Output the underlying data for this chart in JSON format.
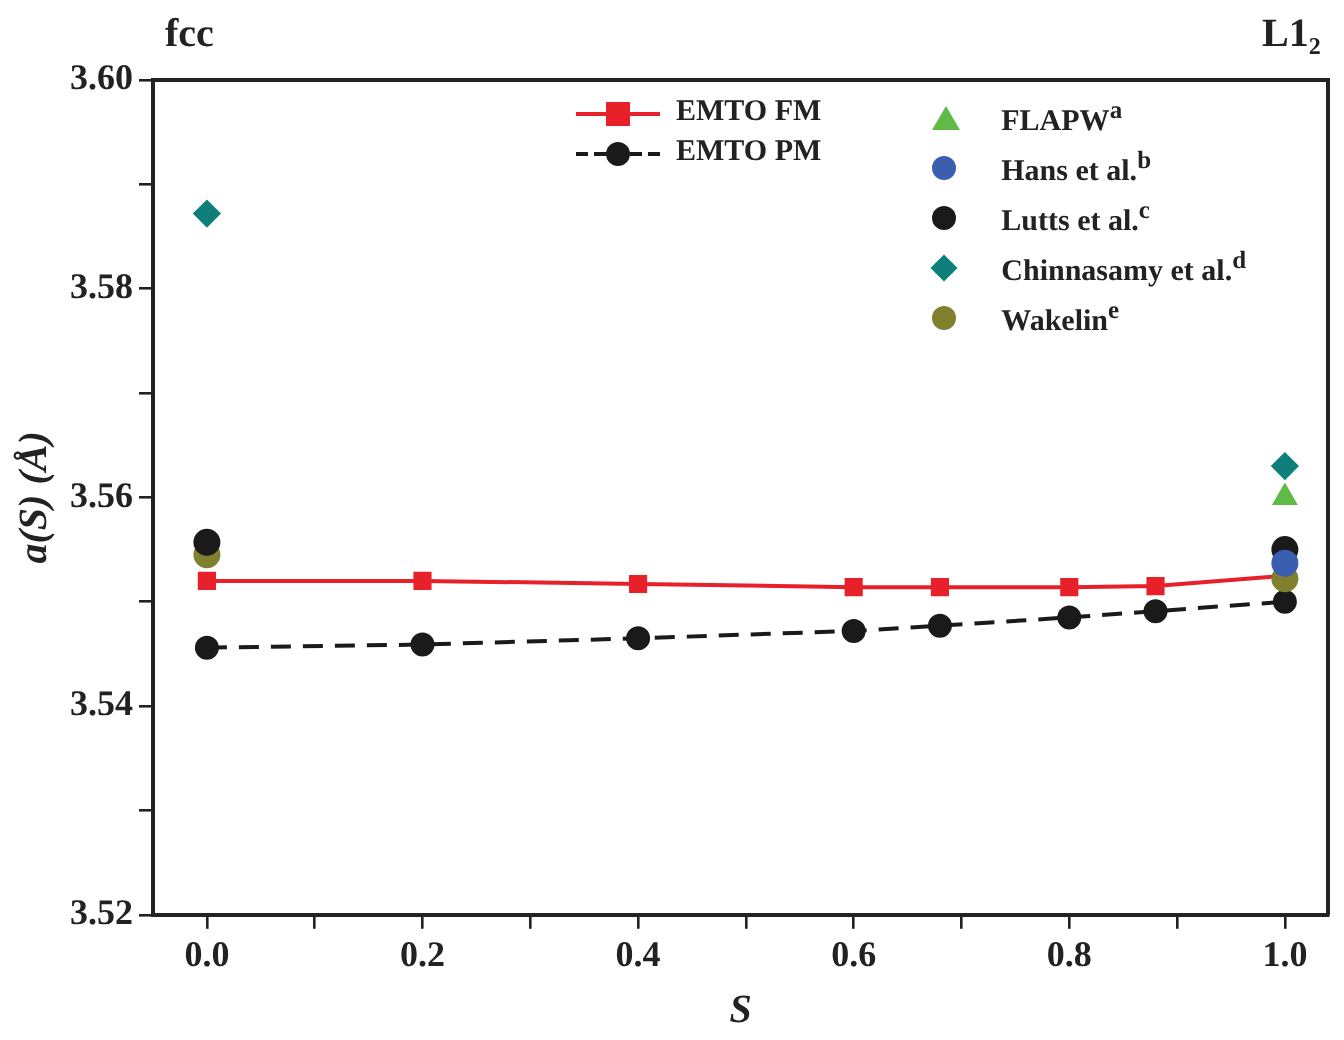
{
  "chart_data": {
    "type": "line",
    "xlabel": "S",
    "ylabel": "a(S) (Å)",
    "annotations": [
      "fcc",
      "L1₂"
    ],
    "xlim": [
      -0.05,
      1.04
    ],
    "xticks": [
      {
        "value": 0,
        "label": "0.0"
      },
      {
        "value": 0.1,
        "label": null
      },
      {
        "value": 0.2,
        "label": "0.2"
      },
      {
        "value": 0.3,
        "label": null
      },
      {
        "value": 0.4,
        "label": "0.4"
      },
      {
        "value": 0.5,
        "label": null
      },
      {
        "value": 0.6,
        "label": "0.6"
      },
      {
        "value": 0.7,
        "label": null
      },
      {
        "value": 0.8,
        "label": "0.8"
      },
      {
        "value": 0.9,
        "label": null
      },
      {
        "value": 1,
        "label": "1.0"
      }
    ],
    "ylim": [
      3.52,
      3.6
    ],
    "yticks": [
      {
        "value": 3.52,
        "label": "3.52"
      },
      {
        "value": 3.53,
        "label": null
      },
      {
        "value": 3.54,
        "label": "3.54"
      },
      {
        "value": 3.55,
        "label": null
      },
      {
        "value": 3.56,
        "label": "3.56"
      },
      {
        "value": 3.57,
        "label": null
      },
      {
        "value": 3.58,
        "label": "3.58"
      },
      {
        "value": 3.59,
        "label": null
      },
      {
        "value": 3.6,
        "label": "3.60"
      }
    ],
    "grid": false,
    "legend": "top right",
    "series": [
      {
        "name": "EMTO FM",
        "type": "line",
        "color": "#e8202a",
        "marker": "square",
        "line_style": "solid",
        "x": [
          0,
          0.2,
          0.4,
          0.6,
          0.68,
          0.8,
          0.88,
          1.0
        ],
        "values": [
          3.552,
          3.552,
          3.5517,
          3.5514,
          3.5514,
          3.5514,
          3.5515,
          3.5525
        ]
      },
      {
        "name": "EMTO PM",
        "type": "line",
        "color": "#1a1a1a",
        "marker": "circle",
        "line_style": "dashed",
        "x": [
          0,
          0.2,
          0.4,
          0.6,
          0.68,
          0.8,
          0.88,
          1.0
        ],
        "values": [
          3.5456,
          3.5459,
          3.5465,
          3.5472,
          3.5477,
          3.5485,
          3.5491,
          3.55
        ]
      },
      {
        "name": "FLAPW$^{a}$",
        "type": "scatter",
        "color": "#5fba46",
        "marker": "triangle",
        "x": [
          1.0
        ],
        "values": [
          3.56
        ]
      },
      {
        "name": "Hans et al.$^{b}$",
        "type": "scatter",
        "color": "#3a5fb0",
        "marker": "circle",
        "x": [
          1.0
        ],
        "values": [
          3.5537
        ]
      },
      {
        "name": "Lutts et al.$^{c}$",
        "type": "scatter",
        "color": "#1a1a1a",
        "marker": "circle",
        "x": [
          0,
          1.0
        ],
        "values": [
          3.5557,
          3.555
        ]
      },
      {
        "name": "Chinnasamy et al.$^{d}$",
        "type": "scatter",
        "color": "#0e7f7a",
        "marker": "diamond",
        "x": [
          0,
          1.0
        ],
        "values": [
          3.5872,
          3.563
        ]
      },
      {
        "name": "Wakelin$^{e}$",
        "type": "scatter",
        "color": "#80802e",
        "marker": "circle",
        "x": [
          0,
          1.0
        ],
        "values": [
          3.5545,
          3.5522
        ]
      }
    ]
  }
}
